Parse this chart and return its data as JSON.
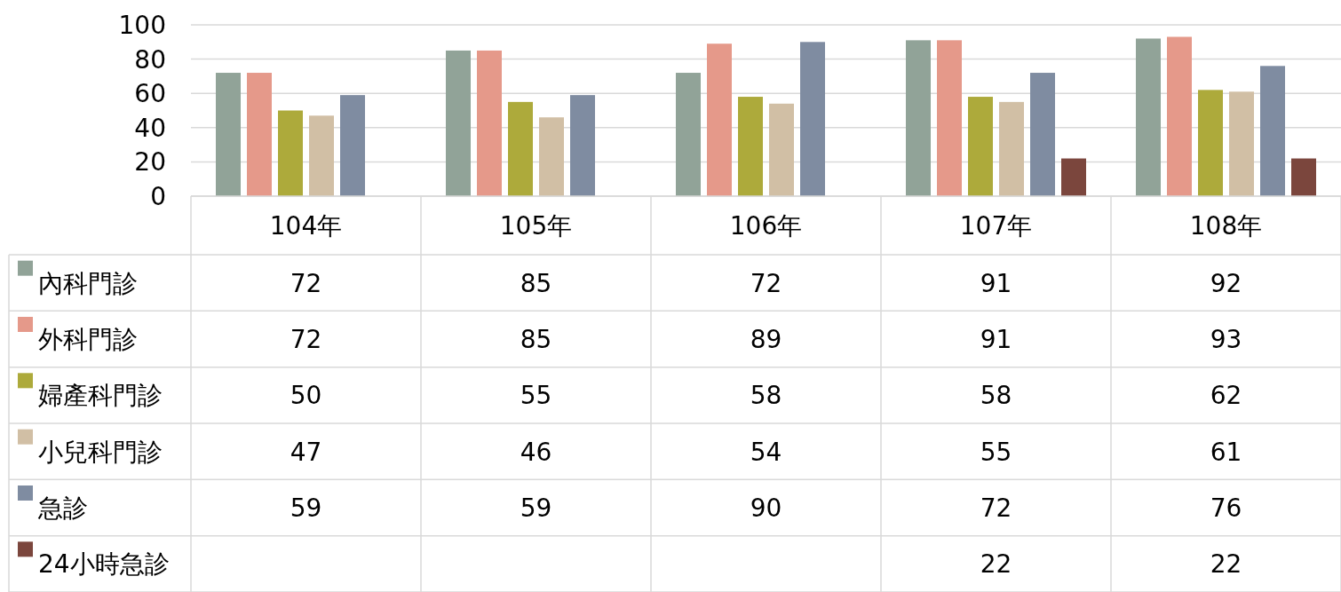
{
  "chart_data": {
    "type": "bar",
    "categories": [
      "104年",
      "105年",
      "106年",
      "107年",
      "108年"
    ],
    "series": [
      {
        "name": "內科門診",
        "color": "#91a398",
        "values": [
          72,
          85,
          72,
          91,
          92
        ]
      },
      {
        "name": "外科門診",
        "color": "#e5998a",
        "values": [
          72,
          85,
          89,
          91,
          93
        ]
      },
      {
        "name": "婦產科門診",
        "color": "#adaa3b",
        "values": [
          50,
          55,
          58,
          58,
          62
        ]
      },
      {
        "name": "小兒科門診",
        "color": "#d1bfa5",
        "values": [
          47,
          46,
          54,
          55,
          61
        ]
      },
      {
        "name": "急診",
        "color": "#7f8ca1",
        "values": [
          59,
          59,
          90,
          72,
          76
        ]
      },
      {
        "name": "24小時急診",
        "color": "#7b463d",
        "values": [
          null,
          null,
          null,
          22,
          22
        ]
      }
    ],
    "ylim": [
      0,
      100
    ],
    "yticks": [
      0,
      20,
      40,
      60,
      80,
      100
    ],
    "grid": "y",
    "legend": "bottom",
    "data_labels": true
  }
}
